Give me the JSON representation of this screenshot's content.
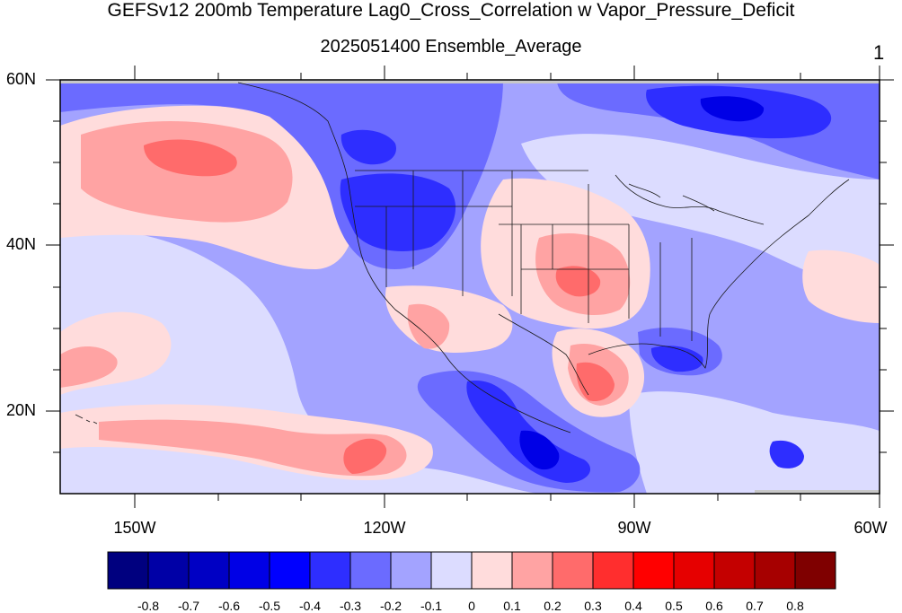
{
  "title": "GEFSv12 200mb Temperature Lag0_Cross_Correlation w Vapor_Pressure_Deficit",
  "subtitle": "2025051400 Ensemble_Average",
  "panel_id": "1",
  "map": {
    "lat_labels": [
      "60N",
      "40N",
      "20N"
    ],
    "lon_labels": [
      "150W",
      "120W",
      "90W",
      "60W"
    ]
  },
  "colorbar": {
    "colors": [
      "#00007f",
      "#0000a6",
      "#0000c4",
      "#0000e6",
      "#0000ff",
      "#2e2eff",
      "#6b6bff",
      "#a3a3ff",
      "#dcdcff",
      "#ffdcdc",
      "#ffa3a3",
      "#ff6b6b",
      "#ff2e2e",
      "#ff0000",
      "#e60000",
      "#c40000",
      "#a60000",
      "#7f0000"
    ],
    "labels": [
      "-0.8",
      "-0.7",
      "-0.6",
      "-0.5",
      "-0.4",
      "-0.3",
      "-0.2",
      "-0.1",
      "0",
      "0.1",
      "0.2",
      "0.3",
      "0.4",
      "0.5",
      "0.6",
      "0.7",
      "0.8"
    ]
  },
  "colors": {
    "neutral_pos": "#ffdcdc",
    "weak_pos": "#ffa3a3",
    "mod_pos": "#ff6b6b",
    "neutral_neg": "#dcdcff",
    "weak_neg": "#a3a3ff",
    "mod_neg": "#6b6bff",
    "strong_neg": "#2e2eff",
    "vstrong_neg": "#0000e6",
    "land_missing": "#c8c8c8"
  }
}
